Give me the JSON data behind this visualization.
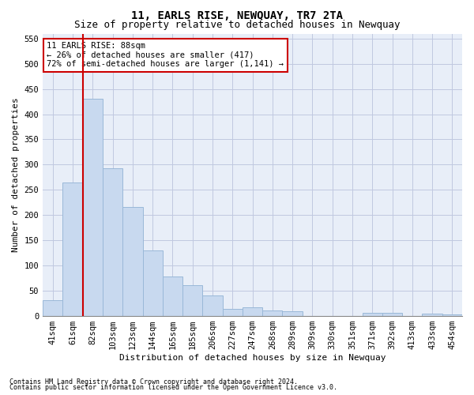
{
  "title": "11, EARLS RISE, NEWQUAY, TR7 2TA",
  "subtitle": "Size of property relative to detached houses in Newquay",
  "xlabel": "Distribution of detached houses by size in Newquay",
  "ylabel": "Number of detached properties",
  "categories": [
    "41sqm",
    "61sqm",
    "82sqm",
    "103sqm",
    "123sqm",
    "144sqm",
    "165sqm",
    "185sqm",
    "206sqm",
    "227sqm",
    "247sqm",
    "268sqm",
    "289sqm",
    "309sqm",
    "330sqm",
    "351sqm",
    "371sqm",
    "392sqm",
    "413sqm",
    "433sqm",
    "454sqm"
  ],
  "values": [
    30,
    265,
    430,
    293,
    215,
    130,
    78,
    60,
    40,
    13,
    17,
    10,
    9,
    0,
    0,
    0,
    5,
    5,
    0,
    4,
    3
  ],
  "bar_color": "#c8d9ef",
  "bar_edge_color": "#9ab8d8",
  "vline_color": "#cc0000",
  "vline_x_index": 2,
  "annotation_text": "11 EARLS RISE: 88sqm\n← 26% of detached houses are smaller (417)\n72% of semi-detached houses are larger (1,141) →",
  "annotation_box_color": "#ffffff",
  "annotation_box_edge_color": "#cc0000",
  "ylim": [
    0,
    560
  ],
  "yticks": [
    0,
    50,
    100,
    150,
    200,
    250,
    300,
    350,
    400,
    450,
    500,
    550
  ],
  "grid_color": "#c0c8e0",
  "bg_color": "#e8eef8",
  "footer_line1": "Contains HM Land Registry data © Crown copyright and database right 2024.",
  "footer_line2": "Contains public sector information licensed under the Open Government Licence v3.0.",
  "title_fontsize": 10,
  "subtitle_fontsize": 9,
  "axis_fontsize": 8,
  "tick_fontsize": 7.5,
  "annotation_fontsize": 7.5,
  "footer_fontsize": 6
}
